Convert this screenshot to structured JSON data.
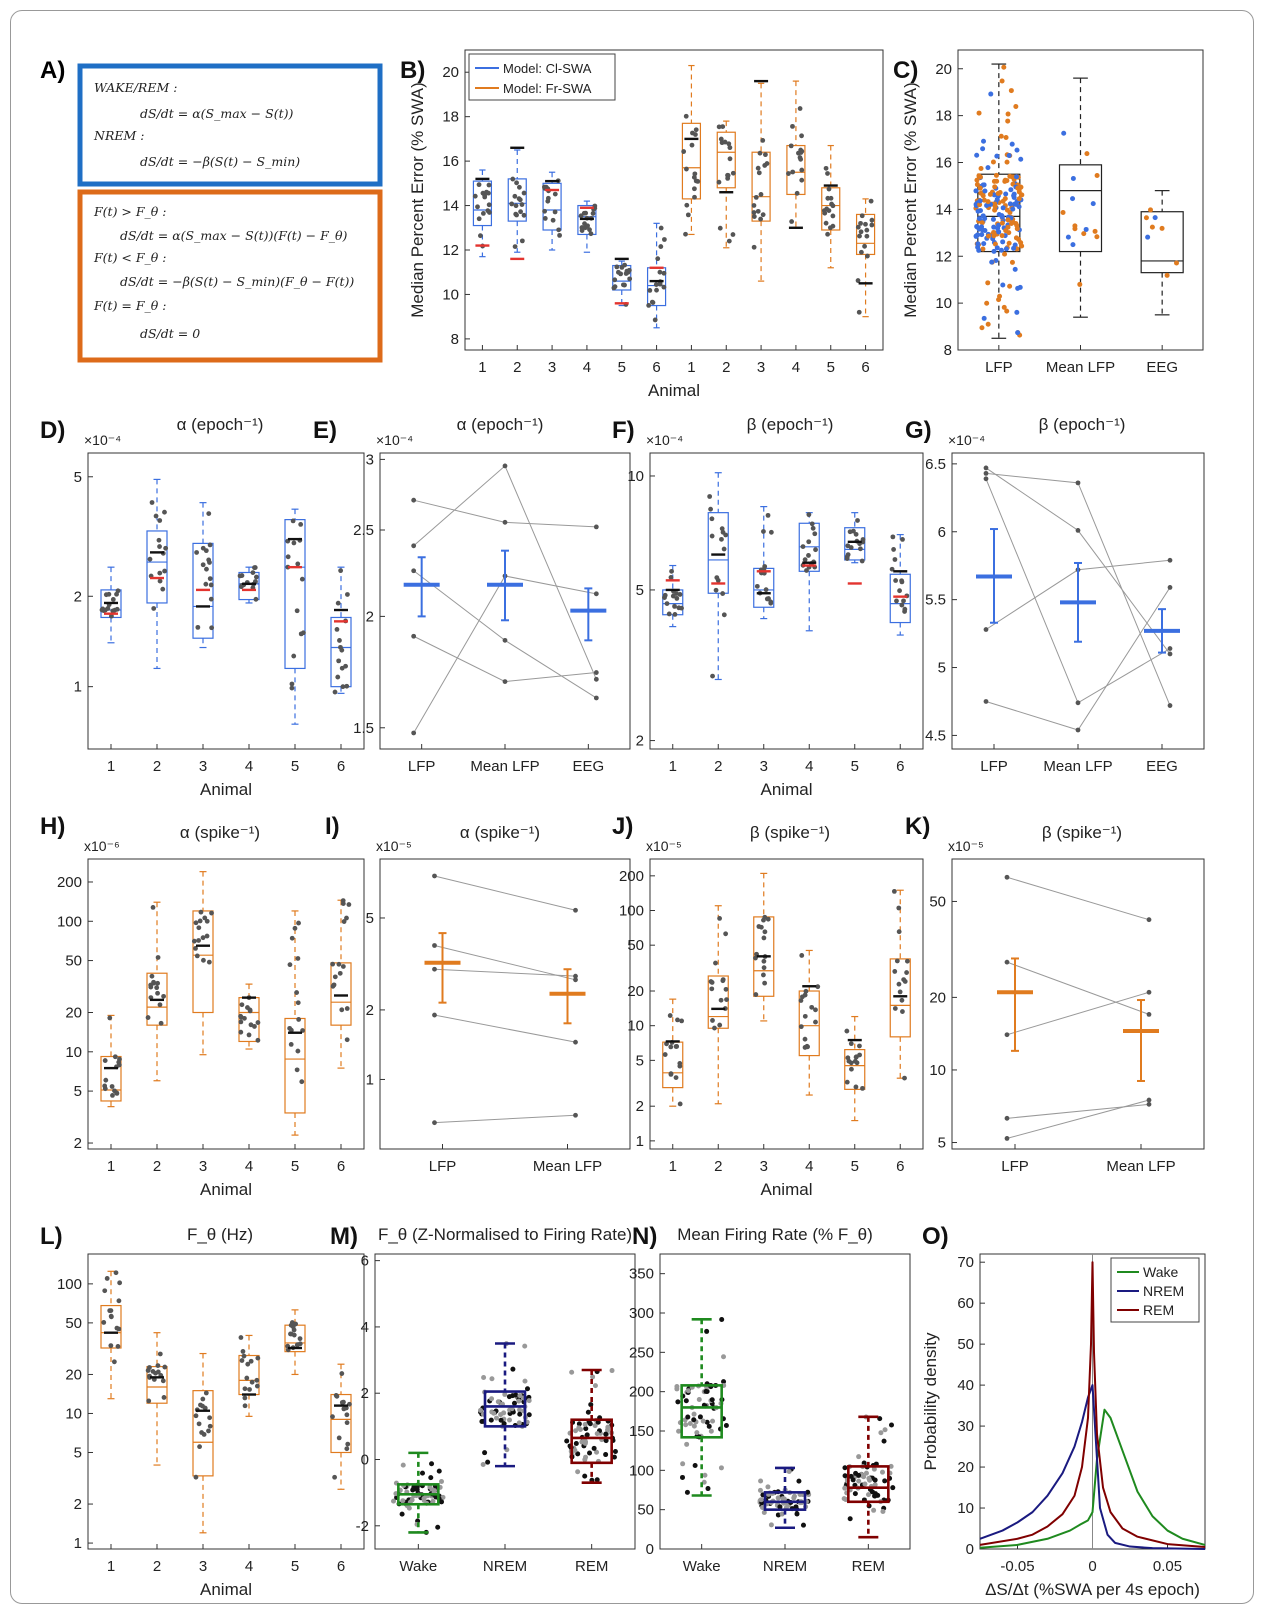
{
  "panel_a": {
    "letter": "A)",
    "box1_color": "#1f6fc5",
    "box2_color": "#dd6b1a",
    "box1_lines": [
      "WAKE/REM :",
      "dS/dt = α(S_max − S(t))",
      "NREM :",
      "dS/dt = −β(S(t) − S_min)"
    ],
    "box2_lines": [
      "F(t) > F_θ :",
      "dS/dt = α(S_max − S(t))(F(t) − F_θ)",
      "F(t) < F_θ :",
      "dS/dt = −β(S(t) − S_min)(F_θ − F(t))",
      "F(t) = F_θ :",
      "dS/dt = 0"
    ]
  },
  "colors": {
    "blue": "#3b6fe0",
    "orange": "#e07b1f",
    "red": "#e3342f",
    "black": "#111111",
    "dot": "#555555",
    "green": "#1f8a1f",
    "navy": "#1a1a80",
    "maroon": "#800000"
  },
  "chart_data": [
    {
      "panel": "B)",
      "type": "box",
      "title": "",
      "xlabel": "Animal",
      "ylabel": "Median Percent Error (% SWA)",
      "ylim": [
        7.5,
        21
      ],
      "yticks": [
        8,
        10,
        12,
        14,
        16,
        18,
        20
      ],
      "categories": [
        "1",
        "2",
        "3",
        "4",
        "5",
        "6",
        "1",
        "2",
        "3",
        "4",
        "5",
        "6"
      ],
      "legend": [
        "Model: Cl-SWA",
        "Model: Fr-SWA"
      ],
      "legend_position": "top-left",
      "series": [
        {
          "name": "Model: Cl-SWA",
          "color": "blue",
          "boxes": [
            {
              "min": 11.7,
              "q1": 13.1,
              "med": 13.8,
              "q3": 15.1,
              "max": 15.6,
              "black": 15.2,
              "red": 12.2
            },
            {
              "min": 11.9,
              "q1": 13.3,
              "med": 14.1,
              "q3": 15.2,
              "max": 16.5,
              "black": 16.6,
              "red": 11.6
            },
            {
              "min": 12.0,
              "q1": 12.9,
              "med": 13.8,
              "q3": 15.0,
              "max": 15.5,
              "black": 15.1,
              "red": 14.7
            },
            {
              "min": 11.9,
              "q1": 12.7,
              "med": 13.5,
              "q3": 14.0,
              "max": 14.2,
              "black": 13.4,
              "red": 13.9
            },
            {
              "min": 9.5,
              "q1": 10.2,
              "med": 10.6,
              "q3": 11.3,
              "max": 11.5,
              "black": 11.6,
              "red": 9.6
            },
            {
              "min": 8.5,
              "q1": 9.5,
              "med": 10.4,
              "q3": 11.2,
              "max": 13.2,
              "black": 10.6,
              "red": 11.2
            }
          ]
        },
        {
          "name": "Model: Fr-SWA",
          "color": "orange",
          "boxes": [
            {
              "min": 12.7,
              "q1": 14.3,
              "med": 15.7,
              "q3": 17.7,
              "max": 20.3,
              "black": 17.0,
              "red": null
            },
            {
              "min": 12.1,
              "q1": 14.8,
              "med": 16.4,
              "q3": 17.3,
              "max": 17.8,
              "black": 14.6,
              "red": null
            },
            {
              "min": 10.6,
              "q1": 13.3,
              "med": 14.4,
              "q3": 16.4,
              "max": 19.5,
              "black": 19.6,
              "red": null
            },
            {
              "min": 13.0,
              "q1": 14.5,
              "med": 15.5,
              "q3": 16.7,
              "max": 19.6,
              "black": 13.0,
              "red": null
            },
            {
              "min": 11.2,
              "q1": 12.9,
              "med": 14.0,
              "q3": 14.8,
              "max": 16.7,
              "black": 14.9,
              "red": null
            },
            {
              "min": 9.0,
              "q1": 11.8,
              "med": 12.3,
              "q3": 13.6,
              "max": 14.3,
              "black": 10.5,
              "red": null
            }
          ]
        }
      ]
    },
    {
      "panel": "C)",
      "type": "box",
      "xlabel": "",
      "ylabel": "Median Percent Error (% SWA)",
      "ylim": [
        8,
        20.8
      ],
      "yticks": [
        8,
        10,
        12,
        14,
        16,
        18,
        20
      ],
      "categories": [
        "LFP",
        "Mean LFP",
        "EEG"
      ],
      "boxes": [
        {
          "min": 8.5,
          "q1": 12.2,
          "med": 13.7,
          "q3": 15.5,
          "max": 20.2
        },
        {
          "min": 9.4,
          "q1": 12.2,
          "med": 14.8,
          "q3": 15.9,
          "max": 19.6
        },
        {
          "min": 9.5,
          "q1": 11.3,
          "med": 11.8,
          "q3": 13.9,
          "max": 14.8
        }
      ]
    },
    {
      "panel": "D)",
      "type": "box",
      "title": "α (epoch⁻¹)",
      "xlabel": "Animal",
      "scale": "log",
      "multiplier": "×10⁻⁴",
      "ylim": [
        0.62,
        6.0
      ],
      "yticks": [
        1,
        2,
        5
      ],
      "categories": [
        "1",
        "2",
        "3",
        "4",
        "5",
        "6"
      ],
      "color": "blue",
      "boxes": [
        {
          "min": 1.4,
          "q1": 1.7,
          "med": 1.8,
          "q3": 2.1,
          "max": 2.5,
          "black": 1.9,
          "red": 1.75
        },
        {
          "min": 1.15,
          "q1": 1.9,
          "med": 2.6,
          "q3": 3.3,
          "max": 4.9,
          "black": 2.8,
          "red": 2.3
        },
        {
          "min": 1.35,
          "q1": 1.45,
          "med": 1.85,
          "q3": 3.0,
          "max": 4.1,
          "black": 1.85,
          "red": 2.1
        },
        {
          "min": 1.9,
          "q1": 1.95,
          "med": 2.2,
          "q3": 2.4,
          "max": 2.5,
          "black": 2.2,
          "red": 2.1
        },
        {
          "min": 0.75,
          "q1": 1.15,
          "med": 2.5,
          "q3": 3.6,
          "max": 3.9,
          "black": 3.1,
          "red": 2.5
        },
        {
          "min": 0.95,
          "q1": 1.0,
          "med": 1.35,
          "q3": 1.7,
          "max": 2.5,
          "black": 1.8,
          "red": 1.65
        }
      ]
    },
    {
      "panel": "E)",
      "type": "paired",
      "title": "α (epoch⁻¹)",
      "scale": "log",
      "multiplier": "×10⁻⁴",
      "ylim": [
        1.42,
        3.05
      ],
      "yticks": [
        1.5,
        2,
        2.5,
        3
      ],
      "categories": [
        "LFP",
        "Mean LFP",
        "EEG"
      ],
      "color": "blue",
      "means": [
        2.17,
        2.17,
        2.03
      ],
      "err": [
        [
          2.0,
          2.33
        ],
        [
          1.98,
          2.37
        ],
        [
          1.88,
          2.15
        ]
      ],
      "lines": [
        [
          2.7,
          2.55,
          2.52
        ],
        [
          2.4,
          2.95,
          1.7
        ],
        [
          2.25,
          1.88,
          1.62
        ],
        [
          1.9,
          1.69,
          1.73
        ],
        [
          1.48,
          2.22,
          2.12
        ]
      ]
    },
    {
      "panel": "F)",
      "type": "box",
      "title": "β (epoch⁻¹)",
      "xlabel": "Animal",
      "scale": "log",
      "multiplier": "×10⁻⁴",
      "ylim": [
        1.9,
        11.5
      ],
      "yticks": [
        2,
        5,
        10
      ],
      "categories": [
        "1",
        "2",
        "3",
        "4",
        "5",
        "6"
      ],
      "color": "blue",
      "boxes": [
        {
          "min": 4.0,
          "q1": 4.3,
          "med": 4.6,
          "q3": 5.0,
          "max": 5.8,
          "black": 5.0,
          "red": 5.3
        },
        {
          "min": 2.9,
          "q1": 4.9,
          "med": 6.0,
          "q3": 8.0,
          "max": 10.2,
          "black": 6.2,
          "red": 5.2
        },
        {
          "min": 4.2,
          "q1": 4.5,
          "med": 5.0,
          "q3": 5.7,
          "max": 8.3,
          "black": 4.9,
          "red": 5.6
        },
        {
          "min": 3.9,
          "q1": 5.6,
          "med": 6.5,
          "q3": 7.5,
          "max": 8.0,
          "black": 5.9,
          "red": 5.8
        },
        {
          "min": 5.9,
          "q1": 6.0,
          "med": 6.4,
          "q3": 7.3,
          "max": 8.0,
          "black": 6.7,
          "red": 5.2
        },
        {
          "min": 3.8,
          "q1": 4.1,
          "med": 4.6,
          "q3": 5.5,
          "max": 7.0,
          "black": 5.6,
          "red": 4.8
        }
      ]
    },
    {
      "panel": "G)",
      "type": "paired",
      "title": "β (epoch⁻¹)",
      "multiplier": "×10⁻⁴",
      "ylim": [
        4.4,
        6.58
      ],
      "yticks": [
        4.5,
        5,
        5.5,
        6,
        6.5
      ],
      "categories": [
        "LFP",
        "Mean LFP",
        "EEG"
      ],
      "color": "blue",
      "means": [
        5.67,
        5.48,
        5.27
      ],
      "err": [
        [
          5.33,
          6.02
        ],
        [
          5.19,
          5.77
        ],
        [
          5.11,
          5.43
        ]
      ],
      "lines": [
        [
          6.47,
          6.01,
          5.1
        ],
        [
          6.43,
          6.36,
          4.72
        ],
        [
          6.39,
          4.74,
          5.14
        ],
        [
          5.28,
          5.72,
          5.79
        ],
        [
          4.75,
          4.54,
          5.59
        ]
      ]
    },
    {
      "panel": "H)",
      "type": "box",
      "title": "α (spike⁻¹)",
      "xlabel": "Animal",
      "scale": "log",
      "multiplier": "x10⁻⁶",
      "ylim": [
        1.8,
        300
      ],
      "yticks": [
        2,
        5,
        10,
        20,
        50,
        100,
        200
      ],
      "categories": [
        "1",
        "2",
        "3",
        "4",
        "5",
        "6"
      ],
      "color": "orange",
      "boxes": [
        {
          "min": 3.8,
          "q1": 4.2,
          "med": 5.1,
          "q3": 9.2,
          "max": 19,
          "black": 7.5
        },
        {
          "min": 6,
          "q1": 16,
          "med": 22,
          "q3": 40,
          "max": 140,
          "black": 25
        },
        {
          "min": 9.5,
          "q1": 20,
          "med": 55,
          "q3": 120,
          "max": 240,
          "black": 65
        },
        {
          "min": 10.5,
          "q1": 12,
          "med": 20,
          "q3": 26,
          "max": 33,
          "black": 26
        },
        {
          "min": 2.3,
          "q1": 3.4,
          "med": 8.8,
          "q3": 18,
          "max": 120,
          "black": 14
        },
        {
          "min": 7.5,
          "q1": 16,
          "med": 24,
          "q3": 48,
          "max": 145,
          "black": 27
        }
      ]
    },
    {
      "panel": "I)",
      "type": "paired",
      "title": "α (spike⁻¹)",
      "scale": "log",
      "multiplier": "x10⁻⁵",
      "ylim": [
        0.5,
        9
      ],
      "yticks": [
        1,
        2,
        5
      ],
      "categories": [
        "LFP",
        "Mean LFP"
      ],
      "color": "orange",
      "means": [
        3.2,
        2.35
      ],
      "err": [
        [
          2.15,
          4.3
        ],
        [
          1.75,
          3.0
        ]
      ],
      "lines": [
        [
          7.6,
          5.4
        ],
        [
          3.8,
          2.7
        ],
        [
          3.0,
          2.8
        ],
        [
          1.9,
          1.45
        ],
        [
          0.65,
          0.7
        ]
      ]
    },
    {
      "panel": "J)",
      "type": "box",
      "title": "β (spike⁻¹)",
      "xlabel": "Animal",
      "scale": "log",
      "multiplier": "x10⁻⁵",
      "ylim": [
        0.85,
        280
      ],
      "yticks": [
        1,
        2,
        5,
        10,
        20,
        50,
        100,
        200
      ],
      "categories": [
        "1",
        "2",
        "3",
        "4",
        "5",
        "6"
      ],
      "color": "orange",
      "boxes": [
        {
          "min": 2.0,
          "q1": 2.9,
          "med": 3.9,
          "q3": 7.2,
          "max": 17,
          "black": 7.3
        },
        {
          "min": 2.1,
          "q1": 9.5,
          "med": 12,
          "q3": 27,
          "max": 110,
          "black": 14
        },
        {
          "min": 11,
          "q1": 18,
          "med": 30,
          "q3": 88,
          "max": 210,
          "black": 40
        },
        {
          "min": 2.5,
          "q1": 5.5,
          "med": 10,
          "q3": 20,
          "max": 45,
          "black": 22
        },
        {
          "min": 1.5,
          "q1": 2.8,
          "med": 4.5,
          "q3": 6.2,
          "max": 12,
          "black": 7.5
        },
        {
          "min": 3.5,
          "q1": 8,
          "med": 15,
          "q3": 38,
          "max": 150,
          "black": 18
        }
      ]
    },
    {
      "panel": "K)",
      "type": "paired",
      "title": "β (spike⁻¹)",
      "scale": "log",
      "multiplier": "x10⁻⁵",
      "ylim": [
        4.7,
        75
      ],
      "yticks": [
        5,
        10,
        20,
        50
      ],
      "categories": [
        "LFP",
        "Mean LFP"
      ],
      "color": "orange",
      "means": [
        21,
        14.5
      ],
      "err": [
        [
          12,
          29
        ],
        [
          9,
          19.5
        ]
      ],
      "lines": [
        [
          63,
          42
        ],
        [
          28,
          17
        ],
        [
          14,
          21
        ],
        [
          6.3,
          7.2
        ],
        [
          5.2,
          7.5
        ]
      ]
    },
    {
      "panel": "L)",
      "type": "box",
      "title": "F_θ (Hz)",
      "xlabel": "Animal",
      "scale": "log",
      "ylim": [
        0.9,
        170
      ],
      "yticks": [
        1,
        2,
        5,
        10,
        20,
        50,
        100
      ],
      "categories": [
        "1",
        "2",
        "3",
        "4",
        "5",
        "6"
      ],
      "color": "orange",
      "boxes": [
        {
          "min": 13,
          "q1": 32,
          "med": 42,
          "q3": 68,
          "max": 125,
          "black": 42
        },
        {
          "min": 4,
          "q1": 12,
          "med": 16,
          "q3": 23,
          "max": 42,
          "black": 19
        },
        {
          "min": 1.2,
          "q1": 3.3,
          "med": 6,
          "q3": 15,
          "max": 29,
          "black": 10.5
        },
        {
          "min": 9.5,
          "q1": 14,
          "med": 18,
          "q3": 28,
          "max": 40,
          "black": 14
        },
        {
          "min": 20,
          "q1": 30,
          "med": 35,
          "q3": 48,
          "max": 63,
          "black": 32
        },
        {
          "min": 2.6,
          "q1": 5,
          "med": 9,
          "q3": 14,
          "max": 24,
          "black": 11.5
        }
      ]
    },
    {
      "panel": "M)",
      "type": "box",
      "title": "F_θ (Z-Normalised to Firing Rate)",
      "ylim": [
        -2.7,
        6.2
      ],
      "yticks": [
        -2,
        0,
        2,
        4,
        6
      ],
      "categories": [
        "Wake",
        "NREM",
        "REM"
      ],
      "colors": [
        "green",
        "navy",
        "maroon"
      ],
      "boxes": [
        {
          "min": -2.2,
          "q1": -1.35,
          "med": -1.05,
          "q3": -0.75,
          "max": 0.2
        },
        {
          "min": -0.2,
          "q1": 1.0,
          "med": 1.6,
          "q3": 2.05,
          "max": 3.5
        },
        {
          "min": -0.7,
          "q1": -0.1,
          "med": 0.65,
          "q3": 1.2,
          "max": 2.7
        }
      ]
    },
    {
      "panel": "N)",
      "type": "box",
      "title": "Mean Firing Rate (% F_θ)",
      "ylim": [
        0,
        375
      ],
      "yticks": [
        0,
        50,
        100,
        150,
        200,
        250,
        300,
        350
      ],
      "categories": [
        "Wake",
        "NREM",
        "REM"
      ],
      "colors": [
        "green",
        "navy",
        "maroon"
      ],
      "boxes": [
        {
          "min": 68,
          "q1": 142,
          "med": 180,
          "q3": 208,
          "max": 292
        },
        {
          "min": 27,
          "q1": 50,
          "med": 60,
          "q3": 72,
          "max": 103
        },
        {
          "min": 15,
          "q1": 60,
          "med": 78,
          "q3": 105,
          "max": 168
        }
      ]
    },
    {
      "panel": "O)",
      "type": "line",
      "xlabel": "ΔS/Δt (%SWA per 4s epoch)",
      "ylabel": "Probability density",
      "xlim": [
        -0.075,
        0.075
      ],
      "ylim": [
        0,
        72
      ],
      "xticks": [
        -0.05,
        0,
        0.05
      ],
      "yticks": [
        0,
        10,
        20,
        30,
        40,
        50,
        60,
        70
      ],
      "legend_position": "top-right",
      "series": [
        {
          "name": "Wake",
          "color": "green",
          "x": [
            -0.075,
            -0.05,
            -0.03,
            -0.015,
            -0.008,
            -0.003,
            0.0,
            0.003,
            0.008,
            0.012,
            0.02,
            0.03,
            0.04,
            0.05,
            0.06,
            0.075
          ],
          "y": [
            0.3,
            1,
            2.5,
            4.5,
            6,
            7,
            9,
            22,
            34,
            32,
            24,
            14,
            8,
            4.5,
            2.5,
            1
          ]
        },
        {
          "name": "NREM",
          "color": "navy",
          "x": [
            -0.075,
            -0.06,
            -0.05,
            -0.04,
            -0.03,
            -0.02,
            -0.012,
            -0.007,
            -0.003,
            0.0,
            0.002,
            0.005,
            0.01,
            0.015,
            0.025,
            0.04,
            0.075
          ],
          "y": [
            2.5,
            4.5,
            6.5,
            9,
            13,
            18.5,
            25,
            31,
            37,
            40,
            28,
            10,
            3.5,
            1.5,
            0.6,
            0.2,
            0
          ]
        },
        {
          "name": "REM",
          "color": "maroon",
          "x": [
            -0.075,
            -0.05,
            -0.04,
            -0.03,
            -0.02,
            -0.012,
            -0.007,
            -0.003,
            -0.001,
            0.0,
            0.001,
            0.003,
            0.007,
            0.012,
            0.02,
            0.03,
            0.05,
            0.075
          ],
          "y": [
            1,
            2.5,
            3.5,
            5.5,
            8.5,
            13,
            20,
            32,
            50,
            70,
            48,
            28,
            15,
            9,
            5,
            3,
            1.2,
            0.5
          ]
        }
      ]
    }
  ]
}
